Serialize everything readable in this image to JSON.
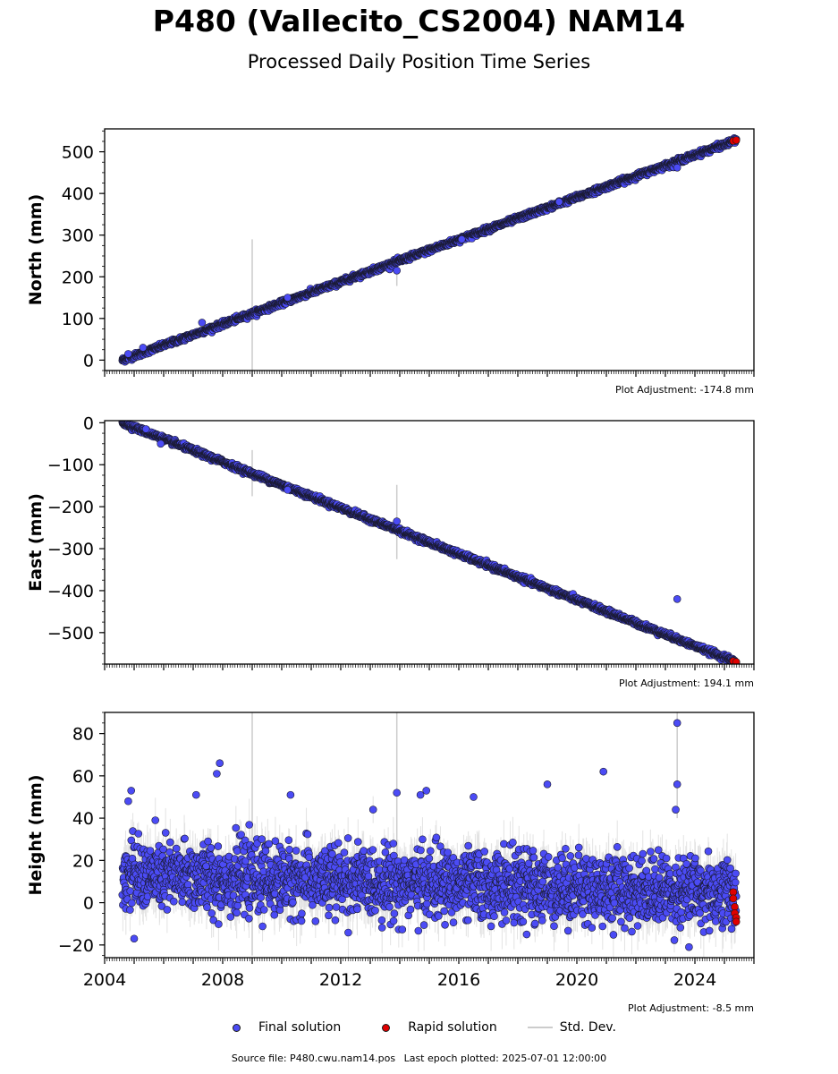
{
  "title": "P480 (Vallecito_CS2004) NAM14",
  "subtitle": "Processed Daily Position Time Series",
  "legend": {
    "final": "Final solution",
    "rapid": "Rapid solution",
    "std": "Std. Dev."
  },
  "footer": {
    "source": "Source file: P480.cwu.nam14.pos",
    "last_epoch": "Last epoch plotted: 2025-07-01 12:00:00"
  },
  "colors": {
    "final": "#4b4bf5",
    "rapid": "#e00000",
    "std_dev": "#cccccc"
  },
  "chart_data": [
    {
      "type": "scatter",
      "ylabel": "North (mm)",
      "adjustment": "Plot Adjustment: -174.8 mm",
      "xlim": [
        2004,
        2026
      ],
      "ylim": [
        -25,
        555
      ],
      "yticks": [
        0,
        100,
        200,
        300,
        400,
        500
      ],
      "trend": {
        "x": [
          2004.6,
          2025.4
        ],
        "y": [
          0,
          528
        ]
      },
      "scatter_sd": 3,
      "outliers": [
        {
          "x": 2004.8,
          "y": 15
        },
        {
          "x": 2005.3,
          "y": 30
        },
        {
          "x": 2007.3,
          "y": 90
        },
        {
          "x": 2010.2,
          "y": 150
        },
        {
          "x": 2013.9,
          "y": 215
        },
        {
          "x": 2016.1,
          "y": 290
        },
        {
          "x": 2019.4,
          "y": 380
        },
        {
          "x": 2023.4,
          "y": 462
        }
      ],
      "std_spikes": [
        {
          "x": 2009.0,
          "low": -25,
          "high": 290
        },
        {
          "x": 2013.9,
          "low": 178,
          "high": 250
        }
      ],
      "rapid": {
        "x": [
          2025.3,
          2025.4
        ],
        "y": [
          526,
          528
        ]
      }
    },
    {
      "type": "scatter",
      "ylabel": "East (mm)",
      "adjustment": "Plot Adjustment: 194.1 mm",
      "xlim": [
        2004,
        2026
      ],
      "ylim": [
        -575,
        5
      ],
      "yticks": [
        0,
        -100,
        -200,
        -300,
        -400,
        -500
      ],
      "trend": {
        "x": [
          2004.6,
          2025.4
        ],
        "y": [
          0,
          -570
        ]
      },
      "scatter_sd": 3,
      "outliers": [
        {
          "x": 2005.4,
          "y": -15
        },
        {
          "x": 2005.9,
          "y": -50
        },
        {
          "x": 2010.2,
          "y": -160
        },
        {
          "x": 2013.9,
          "y": -235
        },
        {
          "x": 2023.4,
          "y": -420
        }
      ],
      "std_spikes": [
        {
          "x": 2009.0,
          "low": -175,
          "high": -65
        },
        {
          "x": 2013.9,
          "low": -325,
          "high": -148
        }
      ],
      "rapid": {
        "x": [
          2025.3,
          2025.4
        ],
        "y": [
          -568,
          -570
        ]
      }
    },
    {
      "type": "scatter",
      "ylabel": "Height (mm)",
      "adjustment": "Plot Adjustment: -8.5 mm",
      "xlim": [
        2004,
        2026
      ],
      "ylim": [
        -26,
        90
      ],
      "yticks": [
        -20,
        0,
        20,
        40,
        60,
        80
      ],
      "xticks": [
        2004,
        2008,
        2012,
        2016,
        2020,
        2024
      ],
      "trend": {
        "x": [
          2004.6,
          2025.4
        ],
        "y": [
          13,
          5
        ]
      },
      "scatter_sd": 8,
      "outliers": [
        {
          "x": 2004.8,
          "y": 48
        },
        {
          "x": 2004.9,
          "y": 53
        },
        {
          "x": 2005.0,
          "y": -17
        },
        {
          "x": 2007.1,
          "y": 51
        },
        {
          "x": 2007.8,
          "y": 61
        },
        {
          "x": 2007.9,
          "y": 66
        },
        {
          "x": 2010.3,
          "y": 51
        },
        {
          "x": 2013.9,
          "y": 52
        },
        {
          "x": 2014.7,
          "y": 51
        },
        {
          "x": 2014.9,
          "y": 53
        },
        {
          "x": 2016.5,
          "y": 50
        },
        {
          "x": 2018.3,
          "y": -15
        },
        {
          "x": 2019.0,
          "y": 56
        },
        {
          "x": 2020.9,
          "y": 62
        },
        {
          "x": 2023.4,
          "y": 85
        },
        {
          "x": 2023.4,
          "y": 56
        },
        {
          "x": 2023.35,
          "y": 44
        },
        {
          "x": 2023.8,
          "y": -21
        }
      ],
      "std_spikes": [
        {
          "x": 2009.0,
          "low": -25,
          "high": 90
        },
        {
          "x": 2013.9,
          "low": 5,
          "high": 90
        },
        {
          "x": 2023.4,
          "low": 40,
          "high": 90
        }
      ],
      "rapid": {
        "x": [
          2025.3,
          2025.3,
          2025.35,
          2025.35,
          2025.4,
          2025.4
        ],
        "y": [
          5,
          2,
          -2,
          -5,
          -7,
          -9
        ]
      }
    }
  ]
}
